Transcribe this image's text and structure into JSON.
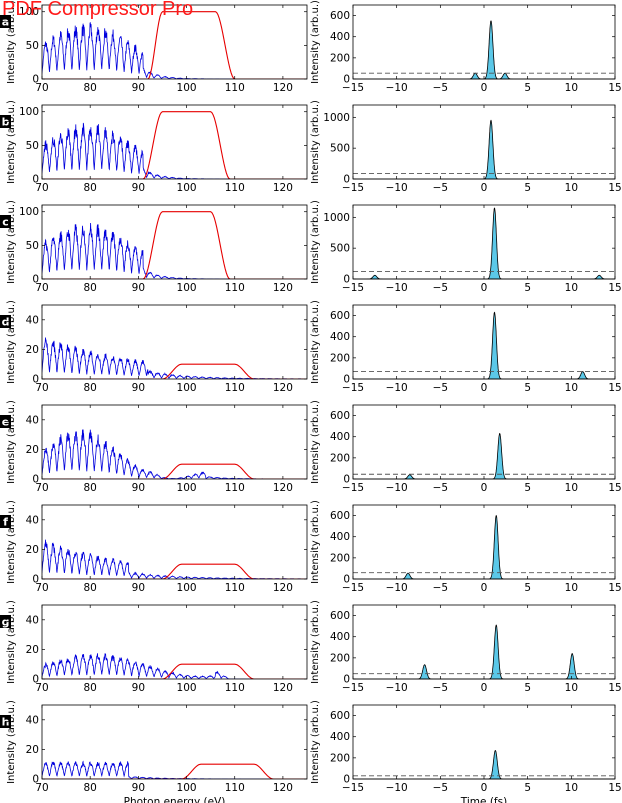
{
  "watermark": "PDF Compressor Pro",
  "chart_data": {
    "type": "line",
    "rows": [
      {
        "label": "a",
        "left": {
          "ylim": [
            0,
            110
          ],
          "yticks": [
            0,
            50,
            100
          ],
          "red": {
            "rise": [
              92,
              95
            ],
            "fall": [
              106,
              110
            ],
            "plateau": 100
          }
        },
        "right": {
          "ylim": [
            0,
            700
          ],
          "yticks": [
            0,
            200,
            400,
            600
          ],
          "threshold": 55,
          "peaks": [
            {
              "t": 0.8,
              "h": 550
            },
            {
              "t": -1.0,
              "h": 55
            },
            {
              "t": 2.4,
              "h": 55
            }
          ]
        }
      },
      {
        "label": "b",
        "left": {
          "ylim": [
            0,
            110
          ],
          "yticks": [
            0,
            50,
            100
          ],
          "red": {
            "rise": [
              91,
              95
            ],
            "fall": [
              105,
              109
            ],
            "plateau": 100
          }
        },
        "right": {
          "ylim": [
            0,
            1200
          ],
          "yticks": [
            0,
            500,
            1000
          ],
          "threshold": 90,
          "peaks": [
            {
              "t": 0.8,
              "h": 950
            }
          ]
        }
      },
      {
        "label": "c",
        "left": {
          "ylim": [
            0,
            110
          ],
          "yticks": [
            0,
            50,
            100
          ],
          "red": {
            "rise": [
              91,
              95
            ],
            "fall": [
              105,
              109
            ],
            "plateau": 100
          }
        },
        "right": {
          "ylim": [
            0,
            1200
          ],
          "yticks": [
            0,
            500,
            1000
          ],
          "threshold": 120,
          "peaks": [
            {
              "t": 1.2,
              "h": 1150
            },
            {
              "t": -12.5,
              "h": 60
            },
            {
              "t": 13.2,
              "h": 60
            }
          ]
        }
      },
      {
        "label": "d",
        "left": {
          "ylim": [
            0,
            50
          ],
          "yticks": [
            0,
            20,
            40
          ],
          "red": {
            "rise": [
              95,
              99
            ],
            "fall": [
              110,
              114
            ],
            "plateau": 10
          }
        },
        "right": {
          "ylim": [
            0,
            700
          ],
          "yticks": [
            0,
            200,
            400,
            600
          ],
          "threshold": 70,
          "peaks": [
            {
              "t": 1.2,
              "h": 630
            },
            {
              "t": 11.3,
              "h": 70
            }
          ]
        }
      },
      {
        "label": "e",
        "left": {
          "ylim": [
            0,
            50
          ],
          "yticks": [
            0,
            20,
            40
          ],
          "red": {
            "rise": [
              95,
              99
            ],
            "fall": [
              110,
              114
            ],
            "plateau": 10
          }
        },
        "right": {
          "ylim": [
            0,
            700
          ],
          "yticks": [
            0,
            200,
            400,
            600
          ],
          "threshold": 45,
          "peaks": [
            {
              "t": 1.8,
              "h": 430
            },
            {
              "t": -8.5,
              "h": 40
            }
          ]
        }
      },
      {
        "label": "f",
        "left": {
          "ylim": [
            0,
            50
          ],
          "yticks": [
            0,
            20,
            40
          ],
          "red": {
            "rise": [
              95,
              99
            ],
            "fall": [
              110,
              114
            ],
            "plateau": 10
          }
        },
        "right": {
          "ylim": [
            0,
            700
          ],
          "yticks": [
            0,
            200,
            400,
            600
          ],
          "threshold": 60,
          "peaks": [
            {
              "t": 1.4,
              "h": 600
            },
            {
              "t": -8.7,
              "h": 55
            }
          ]
        }
      },
      {
        "label": "g",
        "left": {
          "ylim": [
            0,
            50
          ],
          "yticks": [
            0,
            20,
            40
          ],
          "red": {
            "rise": [
              95,
              99
            ],
            "fall": [
              110,
              114
            ],
            "plateau": 10
          }
        },
        "right": {
          "ylim": [
            0,
            700
          ],
          "yticks": [
            0,
            200,
            400,
            600
          ],
          "threshold": 50,
          "peaks": [
            {
              "t": 1.4,
              "h": 510
            },
            {
              "t": -6.8,
              "h": 135
            },
            {
              "t": 10.1,
              "h": 240
            }
          ]
        }
      },
      {
        "label": "h",
        "left": {
          "ylim": [
            0,
            50
          ],
          "yticks": [
            0,
            20,
            40
          ],
          "red": {
            "rise": [
              99,
              103
            ],
            "fall": [
              114,
              118
            ],
            "plateau": 10
          }
        },
        "right": {
          "ylim": [
            0,
            700
          ],
          "yticks": [
            0,
            200,
            400,
            600
          ],
          "threshold": 30,
          "peaks": [
            {
              "t": 1.3,
              "h": 270
            }
          ]
        }
      }
    ],
    "left_axis": {
      "xlim": [
        70,
        125
      ],
      "xticks": [
        70,
        80,
        90,
        100,
        110,
        120
      ],
      "ylabel": "Intensity (arb.u.)",
      "xlabel": "Photon energy (eV)"
    },
    "right_axis": {
      "xlim": [
        -15,
        15
      ],
      "xticks": [
        -15,
        -10,
        -5,
        0,
        5,
        10,
        15
      ],
      "ylabel": "Intensity (arb.u.)",
      "xlabel": "Time (fs)"
    },
    "colors": {
      "spectrum": "#0000dd",
      "filter": "#e60000",
      "peak_fill": "#5bc8e8",
      "threshold": "#555555",
      "label_bg": "#000000"
    }
  }
}
